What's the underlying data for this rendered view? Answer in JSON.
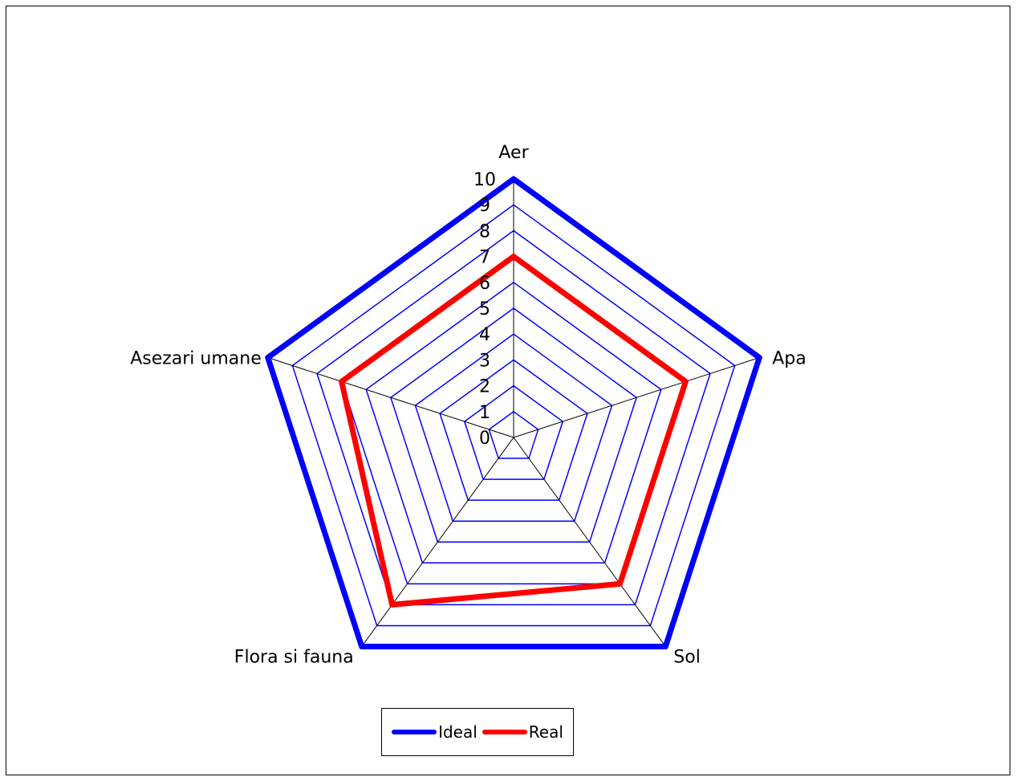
{
  "chart_data": {
    "type": "radar",
    "categories": [
      "Aer",
      "Apa",
      "Sol",
      "Flora si fauna",
      "Asezari umane"
    ],
    "rlim": [
      0,
      10
    ],
    "ticks": [
      "0",
      "1",
      "2",
      "3",
      "4",
      "5",
      "6",
      "7",
      "8",
      "9",
      "10"
    ],
    "grid": true,
    "legend_position": "bottom",
    "series": [
      {
        "name": "Ideal",
        "values": [
          10,
          10,
          10,
          10,
          10
        ],
        "color": "#0000ff"
      },
      {
        "name": "Real",
        "values": [
          7,
          7,
          7,
          8,
          7
        ],
        "color": "#ff0000"
      }
    ],
    "grid_color": "#0000ff",
    "spoke_color": "#000000"
  }
}
